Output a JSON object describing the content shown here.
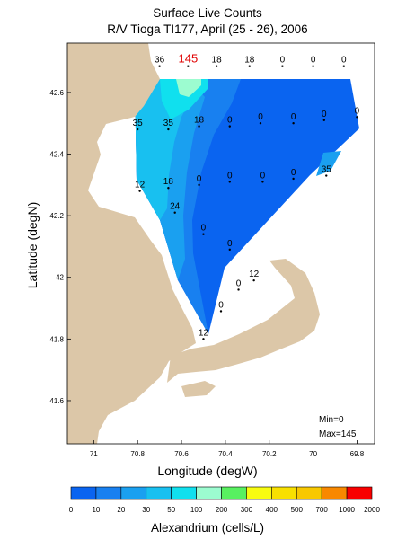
{
  "title": {
    "line1": "Surface Live Counts",
    "line2": "R/V Tioga TI177, April (25 - 26), 2006"
  },
  "map": {
    "xlabel": "Longitude (degW)",
    "ylabel": "Latitude (degN)",
    "x_ticks": [
      "71",
      "70.8",
      "70.6",
      "70.4",
      "70.2",
      "70",
      "69.8"
    ],
    "y_ticks": [
      "42.6",
      "42.4",
      "42.2",
      "42",
      "41.8",
      "41.6"
    ],
    "lon_range": [
      71.12,
      69.72
    ],
    "lat_range": [
      41.46,
      42.76
    ],
    "land_color": "#dcc7a8",
    "stats": {
      "min": "Min=0",
      "max": "Max=145"
    }
  },
  "stations": [
    {
      "lon": 70.7,
      "lat": 42.685,
      "label": "36"
    },
    {
      "lon": 70.57,
      "lat": 42.685,
      "label": "145",
      "highlight": true
    },
    {
      "lon": 70.44,
      "lat": 42.685,
      "label": "18"
    },
    {
      "lon": 70.29,
      "lat": 42.685,
      "label": "18"
    },
    {
      "lon": 70.14,
      "lat": 42.685,
      "label": "0"
    },
    {
      "lon": 70.0,
      "lat": 42.685,
      "label": "0"
    },
    {
      "lon": 69.86,
      "lat": 42.685,
      "label": "0"
    },
    {
      "lon": 70.8,
      "lat": 42.48,
      "label": "35"
    },
    {
      "lon": 70.66,
      "lat": 42.48,
      "label": "35"
    },
    {
      "lon": 70.52,
      "lat": 42.49,
      "label": "18"
    },
    {
      "lon": 70.38,
      "lat": 42.49,
      "label": "0"
    },
    {
      "lon": 70.24,
      "lat": 42.5,
      "label": "0"
    },
    {
      "lon": 70.09,
      "lat": 42.5,
      "label": "0"
    },
    {
      "lon": 69.95,
      "lat": 42.51,
      "label": "0"
    },
    {
      "lon": 69.8,
      "lat": 42.52,
      "label": "0"
    },
    {
      "lon": 70.79,
      "lat": 42.28,
      "label": "12"
    },
    {
      "lon": 70.66,
      "lat": 42.29,
      "label": "18"
    },
    {
      "lon": 70.52,
      "lat": 42.3,
      "label": "0"
    },
    {
      "lon": 70.38,
      "lat": 42.31,
      "label": "0"
    },
    {
      "lon": 70.23,
      "lat": 42.31,
      "label": "0"
    },
    {
      "lon": 70.09,
      "lat": 42.32,
      "label": "0"
    },
    {
      "lon": 69.94,
      "lat": 42.33,
      "label": "35"
    },
    {
      "lon": 70.63,
      "lat": 42.21,
      "label": "24"
    },
    {
      "lon": 70.5,
      "lat": 42.14,
      "label": "0"
    },
    {
      "lon": 70.38,
      "lat": 42.09,
      "label": "0"
    },
    {
      "lon": 70.27,
      "lat": 41.99,
      "label": "12"
    },
    {
      "lon": 70.34,
      "lat": 41.96,
      "label": "0"
    },
    {
      "lon": 70.42,
      "lat": 41.89,
      "label": "0"
    },
    {
      "lon": 70.5,
      "lat": 41.8,
      "label": "12"
    }
  ],
  "colorbar": {
    "title": "Alexandrium (cells/L)",
    "labels": [
      "0",
      "10",
      "20",
      "30",
      "50",
      "100",
      "200",
      "300",
      "400",
      "500",
      "700",
      "1000",
      "2000"
    ],
    "colors": [
      "#0a64f0",
      "#1880f0",
      "#1aa0f0",
      "#18c0f0",
      "#10e0ee",
      "#9cfcd0",
      "#58f060",
      "#f8fc10",
      "#f8e000",
      "#f8c800",
      "#f88800",
      "#f80000"
    ]
  }
}
